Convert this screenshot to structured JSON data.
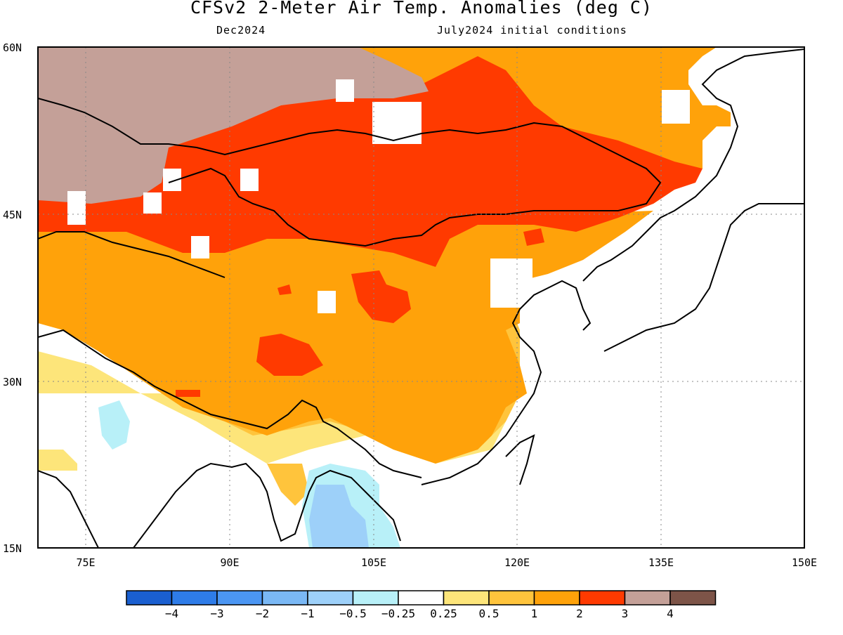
{
  "header": {
    "title": "CFSv2 2-Meter Air Temp. Anomalies (deg C)",
    "subtitle_left": "Dec2024",
    "subtitle_right": "July2024 initial conditions"
  },
  "map": {
    "lat_labels": [
      "60N",
      "45N",
      "30N",
      "15N"
    ],
    "lon_labels": [
      "75E",
      "90E",
      "105E",
      "120E",
      "135E",
      "150E"
    ],
    "lat_range": [
      15,
      60
    ],
    "lon_range": [
      70,
      150
    ],
    "grid": "dotted"
  },
  "colorbar": {
    "colors": [
      "#1a5fd0",
      "#2e7ce8",
      "#4b96f3",
      "#7ab8f5",
      "#9dd0f9",
      "#b8f0f8",
      "#ffffff",
      "#fde57a",
      "#ffc43c",
      "#ffa20a",
      "#ff3a00",
      "#c4a098",
      "#7d5448"
    ],
    "labels": [
      "−4",
      "−3",
      "−2",
      "−1",
      "−0.5",
      "−0.25",
      "0.25",
      "0.5",
      "1",
      "2",
      "3",
      "4"
    ]
  }
}
